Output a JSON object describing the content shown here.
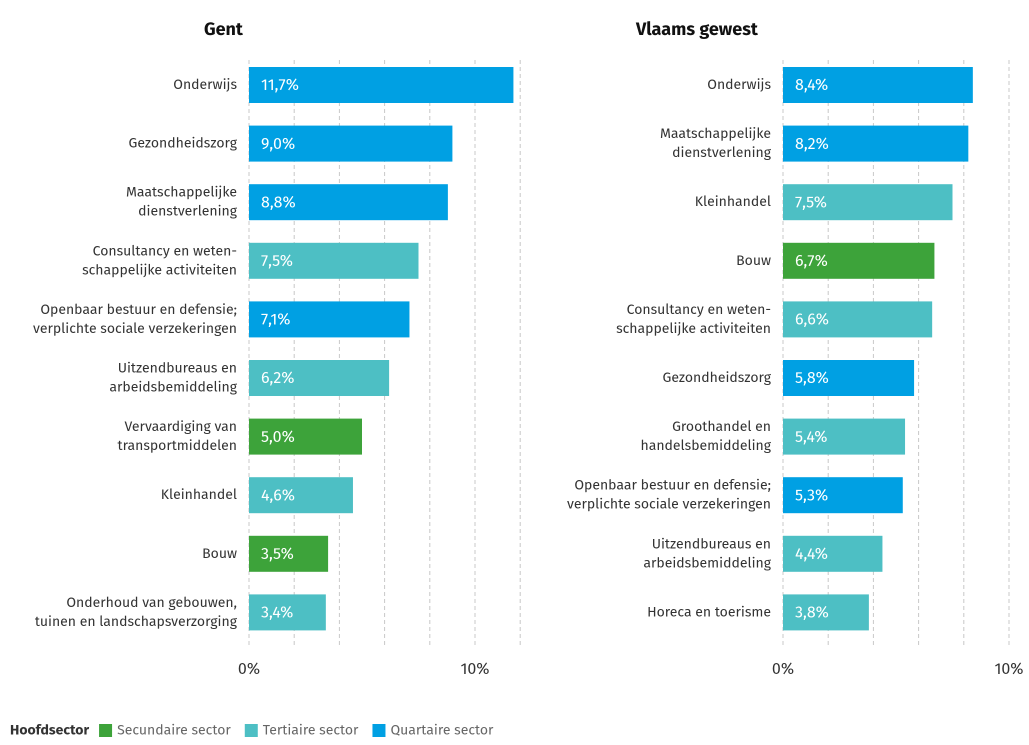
{
  "chart_data": [
    {
      "type": "bar",
      "title": "Gent",
      "categories": [
        [
          "Onderwijs"
        ],
        [
          "Gezondheidszorg"
        ],
        [
          "Maatschappelijke",
          "dienstverlening"
        ],
        [
          "Consultancy en weten-",
          "schappelijke activiteiten"
        ],
        [
          "Openbaar bestuur en defensie;",
          "verplichte sociale verzekeringen"
        ],
        [
          "Uitzendbureaus en",
          "arbeidsbemiddeling"
        ],
        [
          "Vervaardiging van",
          "transportmiddelen"
        ],
        [
          "Kleinhandel"
        ],
        [
          "Bouw"
        ],
        [
          "Onderhoud van gebouwen,",
          "tuinen en landschapsverzorging"
        ]
      ],
      "values": [
        11.7,
        9.0,
        8.8,
        7.5,
        7.1,
        6.2,
        5.0,
        4.6,
        3.5,
        3.4
      ],
      "value_labels": [
        "11,7%",
        "9,0%",
        "8,8%",
        "7,5%",
        "7,1%",
        "6,2%",
        "5,0%",
        "4,6%",
        "3,5%",
        "3,4%"
      ],
      "colors": [
        "#00a0e3",
        "#00a0e3",
        "#00a0e3",
        "#4dbfc4",
        "#00a0e3",
        "#4dbfc4",
        "#3da33a",
        "#4dbfc4",
        "#3da33a",
        "#4dbfc4"
      ],
      "xlim": [
        0,
        12
      ],
      "xticks": [
        {
          "value": 0,
          "label": "0%"
        },
        {
          "value": 10,
          "label": "10%"
        }
      ],
      "minor_xticks": [
        2,
        4,
        6,
        8,
        12
      ]
    },
    {
      "type": "bar",
      "title": "Vlaams gewest",
      "categories": [
        [
          "Onderwijs"
        ],
        [
          "Maatschappelijke",
          "dienstverlening"
        ],
        [
          "Kleinhandel"
        ],
        [
          "Bouw"
        ],
        [
          "Consultancy en weten-",
          "schappelijke activiteiten"
        ],
        [
          "Gezondheidszorg"
        ],
        [
          "Groothandel en",
          "handelsbemiddeling"
        ],
        [
          "Openbaar bestuur en defensie;",
          "verplichte sociale verzekeringen"
        ],
        [
          "Uitzendbureaus en",
          "arbeidsbemiddeling"
        ],
        [
          "Horeca en toerisme"
        ]
      ],
      "values": [
        8.4,
        8.2,
        7.5,
        6.7,
        6.6,
        5.8,
        5.4,
        5.3,
        4.4,
        3.8
      ],
      "value_labels": [
        "8,4%",
        "8,2%",
        "7,5%",
        "6,7%",
        "6,6%",
        "5,8%",
        "5,4%",
        "5,3%",
        "4,4%",
        "3,8%"
      ],
      "colors": [
        "#00a0e3",
        "#00a0e3",
        "#4dbfc4",
        "#3da33a",
        "#4dbfc4",
        "#00a0e3",
        "#4dbfc4",
        "#00a0e3",
        "#4dbfc4",
        "#4dbfc4"
      ],
      "xlim": [
        0,
        12
      ],
      "xticks": [
        {
          "value": 0,
          "label": "0%"
        },
        {
          "value": 10,
          "label": "10%"
        }
      ],
      "minor_xticks": [
        2,
        4,
        6,
        8,
        12
      ]
    }
  ],
  "legend": {
    "title": "Hoofdsector",
    "items": [
      {
        "name": "Secundaire sector",
        "color": "#3da33a"
      },
      {
        "name": "Tertiaire sector",
        "color": "#4dbfc4"
      },
      {
        "name": "Quartaire sector",
        "color": "#00a0e3"
      }
    ]
  }
}
